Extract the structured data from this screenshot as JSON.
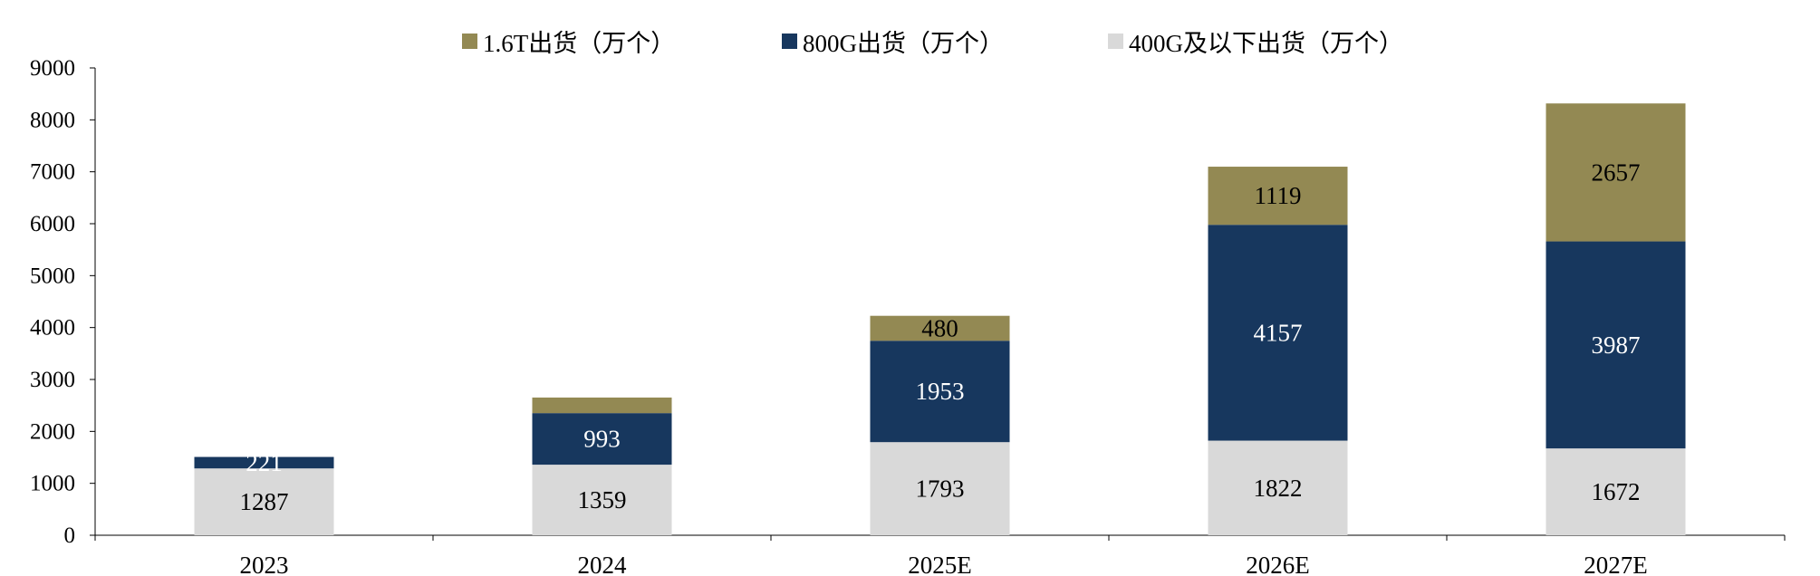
{
  "chart_data": {
    "type": "bar",
    "stacked": true,
    "categories": [
      "2023",
      "2024",
      "2025E",
      "2026E",
      "2027E"
    ],
    "series": [
      {
        "name": "400G及以下出货（万个）",
        "color": "#d9d9d9",
        "label_color": "#000000",
        "values": [
          1287,
          1359,
          1793,
          1822,
          1672
        ],
        "labels": [
          "1287",
          "1359",
          "1793",
          "1822",
          "1672"
        ]
      },
      {
        "name": "800G出货（万个）",
        "color": "#17375e",
        "label_color": "#ffffff",
        "values": [
          221,
          993,
          1953,
          4157,
          3987
        ],
        "labels": [
          "221",
          "993",
          "1953",
          "4157",
          "3987"
        ]
      },
      {
        "name": "1.6T出货（万个）",
        "color": "#938953",
        "label_color": "#000000",
        "values": [
          0,
          300,
          480,
          1119,
          2657
        ],
        "labels": [
          "",
          "",
          "480",
          "1119",
          "2657"
        ]
      }
    ],
    "legend_order": [
      2,
      1,
      0
    ],
    "yticks": [
      "0",
      "1000",
      "2000",
      "3000",
      "4000",
      "5000",
      "6000",
      "7000",
      "8000",
      "9000"
    ],
    "ylim": [
      0,
      9000
    ],
    "title": "",
    "xlabel": "",
    "ylabel": "",
    "grid": false,
    "legend_position": "top"
  }
}
